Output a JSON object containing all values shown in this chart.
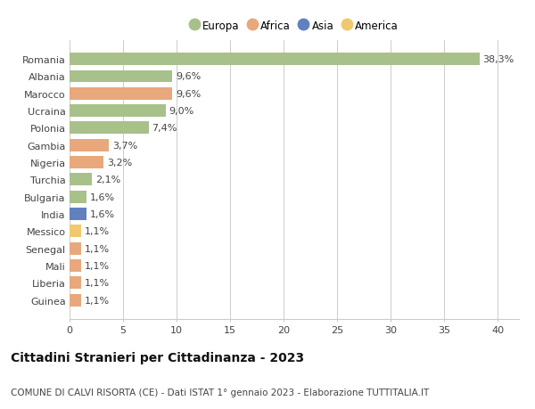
{
  "countries": [
    "Romania",
    "Albania",
    "Marocco",
    "Ucraina",
    "Polonia",
    "Gambia",
    "Nigeria",
    "Turchia",
    "Bulgaria",
    "India",
    "Messico",
    "Senegal",
    "Mali",
    "Liberia",
    "Guinea"
  ],
  "values": [
    38.3,
    9.6,
    9.6,
    9.0,
    7.4,
    3.7,
    3.2,
    2.1,
    1.6,
    1.6,
    1.1,
    1.1,
    1.1,
    1.1,
    1.1
  ],
  "labels": [
    "38,3%",
    "9,6%",
    "9,6%",
    "9,0%",
    "7,4%",
    "3,7%",
    "3,2%",
    "2,1%",
    "1,6%",
    "1,6%",
    "1,1%",
    "1,1%",
    "1,1%",
    "1,1%",
    "1,1%"
  ],
  "continents": [
    "Europa",
    "Europa",
    "Africa",
    "Europa",
    "Europa",
    "Africa",
    "Africa",
    "Europa",
    "Europa",
    "Asia",
    "America",
    "Africa",
    "Africa",
    "Africa",
    "Africa"
  ],
  "continent_colors": {
    "Europa": "#a8c08a",
    "Africa": "#e8a87c",
    "Asia": "#6080c0",
    "America": "#f0c96e"
  },
  "legend_order": [
    "Europa",
    "Africa",
    "Asia",
    "America"
  ],
  "xlim": [
    0,
    42
  ],
  "xticks": [
    0,
    5,
    10,
    15,
    20,
    25,
    30,
    35,
    40
  ],
  "title": "Cittadini Stranieri per Cittadinanza - 2023",
  "subtitle": "COMUNE DI CALVI RISORTA (CE) - Dati ISTAT 1° gennaio 2023 - Elaborazione TUTTITALIA.IT",
  "background_color": "#ffffff",
  "grid_color": "#cccccc",
  "bar_height": 0.72,
  "label_fontsize": 8,
  "title_fontsize": 10,
  "subtitle_fontsize": 7.5
}
